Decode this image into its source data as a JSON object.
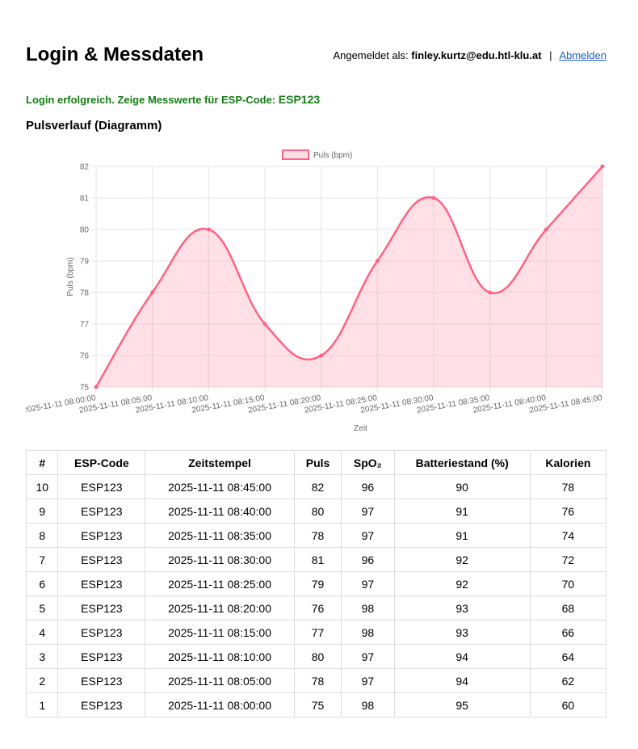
{
  "page": {
    "title": "Login & Messdaten",
    "logged_in_label": "Angemeldet als:",
    "user_email": "finley.kurtz@edu.htl-klu.at",
    "separator": "|",
    "logout_label": "Abmelden",
    "success_message": "Login erfolgreich. Zeige Messwerte für ESP-Code:",
    "esp_code": "ESP123",
    "chart_heading": "Pulsverlauf (Diagramm)"
  },
  "colors": {
    "line": "#ff6384",
    "fill": "rgba(255, 99, 132, 0.2)",
    "success_text": "#137d13",
    "link": "#1a5fd0",
    "grid": "#e5e5e5"
  },
  "chart_data": {
    "type": "line",
    "title": "",
    "legend_position": "top",
    "xlabel": "Zeit",
    "ylabel": "Puls (bpm)",
    "ylim": [
      75,
      82
    ],
    "grid": true,
    "x": [
      "2025-11-11 08:00:00",
      "2025-11-11 08:05:00",
      "2025-11-11 08:10:00",
      "2025-11-11 08:15:00",
      "2025-11-11 08:20:00",
      "2025-11-11 08:25:00",
      "2025-11-11 08:30:00",
      "2025-11-11 08:35:00",
      "2025-11-11 08:40:00",
      "2025-11-11 08:45:00"
    ],
    "y_ticks": [
      75,
      76,
      77,
      78,
      79,
      80,
      81,
      82
    ],
    "series": [
      {
        "name": "Puls (bpm)",
        "values": [
          75,
          78,
          80,
          77,
          76,
          79,
          81,
          78,
          80,
          82
        ]
      }
    ]
  },
  "table": {
    "headers": [
      "#",
      "ESP-Code",
      "Zeitstempel",
      "Puls",
      "SpO₂",
      "Batteriestand (%)",
      "Kalorien"
    ],
    "rows": [
      [
        "10",
        "ESP123",
        "2025-11-11 08:45:00",
        "82",
        "96",
        "90",
        "78"
      ],
      [
        "9",
        "ESP123",
        "2025-11-11 08:40:00",
        "80",
        "97",
        "91",
        "76"
      ],
      [
        "8",
        "ESP123",
        "2025-11-11 08:35:00",
        "78",
        "97",
        "91",
        "74"
      ],
      [
        "7",
        "ESP123",
        "2025-11-11 08:30:00",
        "81",
        "96",
        "92",
        "72"
      ],
      [
        "6",
        "ESP123",
        "2025-11-11 08:25:00",
        "79",
        "97",
        "92",
        "70"
      ],
      [
        "5",
        "ESP123",
        "2025-11-11 08:20:00",
        "76",
        "98",
        "93",
        "68"
      ],
      [
        "4",
        "ESP123",
        "2025-11-11 08:15:00",
        "77",
        "98",
        "93",
        "66"
      ],
      [
        "3",
        "ESP123",
        "2025-11-11 08:10:00",
        "80",
        "97",
        "94",
        "64"
      ],
      [
        "2",
        "ESP123",
        "2025-11-11 08:05:00",
        "78",
        "97",
        "94",
        "62"
      ],
      [
        "1",
        "ESP123",
        "2025-11-11 08:00:00",
        "75",
        "98",
        "95",
        "60"
      ]
    ]
  }
}
